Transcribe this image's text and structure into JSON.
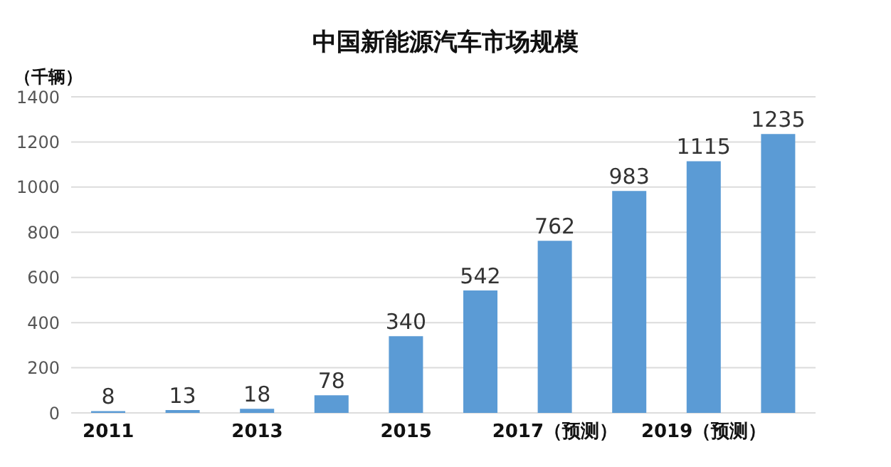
{
  "chart_data": {
    "type": "bar",
    "title": "中国新能源汽车市场规模",
    "ylabel": "（千辆）",
    "categories": [
      "2011",
      null,
      "2013",
      null,
      "2015",
      null,
      "2017（预测）",
      null,
      "2019（预测）",
      null
    ],
    "values": [
      8,
      13,
      18,
      78,
      340,
      542,
      762,
      983,
      1115,
      1235
    ],
    "color": "#5b9bd5",
    "ylim": [
      0,
      1400
    ],
    "yticks": [
      0,
      200,
      400,
      600,
      800,
      1000,
      1200,
      1400
    ],
    "grid": "y",
    "data_labels": true
  }
}
